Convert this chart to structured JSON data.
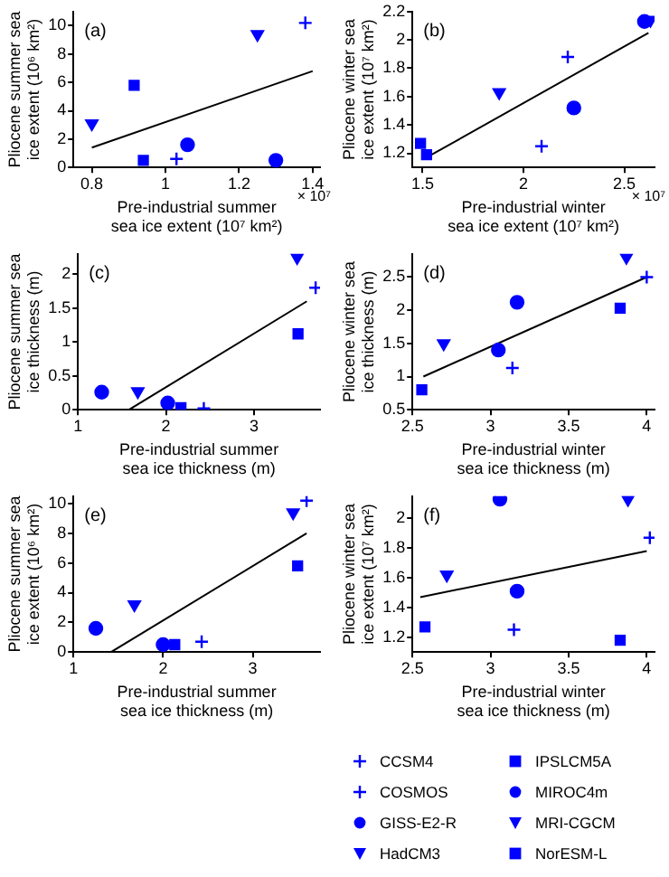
{
  "chart_data": [
    {
      "type": "scatter",
      "xlabel": "Pre-industrial summer\nsea ice extent (10⁷ km²)",
      "ylabel": "Pliocene summer sea\nice extent (10⁶ km²)",
      "annotations": [
        "(a)",
        "× 10⁷"
      ],
      "xlim": [
        0.75,
        1.42
      ],
      "xticks": [
        0.8,
        1,
        1.2,
        1.4
      ],
      "ylim": [
        0,
        11
      ],
      "yticks": [
        0,
        2,
        4,
        6,
        8,
        10
      ],
      "series": [
        {
          "color": "#0000ff",
          "marker": "cross",
          "x": [
            1.38
          ],
          "values": [
            10.2
          ]
        },
        {
          "color": "#0000ff",
          "marker": "cross",
          "x": [
            1.03
          ],
          "values": [
            0.6
          ]
        },
        {
          "color": "#0000ff",
          "marker": "circle",
          "x": [
            1.06
          ],
          "values": [
            1.6
          ]
        },
        {
          "color": "#0000ff",
          "marker": "triangle",
          "x": [
            0.8
          ],
          "values": [
            3.1
          ]
        },
        {
          "color": "#0000ff",
          "marker": "square",
          "x": [
            0.915
          ],
          "values": [
            5.8
          ]
        },
        {
          "color": "#0000ff",
          "marker": "circle",
          "x": [
            1.3
          ],
          "values": [
            0.5
          ]
        },
        {
          "color": "#0000ff",
          "marker": "triangle",
          "x": [
            1.25
          ],
          "values": [
            9.4
          ]
        },
        {
          "color": "#0000ff",
          "marker": "square",
          "x": [
            0.94
          ],
          "values": [
            0.5
          ]
        },
        {
          "type": "line",
          "color": "#000000",
          "marker": "none",
          "x": [
            0.8,
            1.4
          ],
          "values": [
            1.4,
            6.8
          ]
        }
      ]
    },
    {
      "type": "scatter",
      "xlabel": "Pre-industrial winter\nsea ice extent (10⁷ km²)",
      "ylabel": "Pliocene winter sea\nice extent (10⁷ km²)",
      "annotations": [
        "(b)",
        "× 10⁷"
      ],
      "xlim": [
        1.45,
        2.65
      ],
      "xticks": [
        1.5,
        2,
        2.5
      ],
      "ylim": [
        1.1,
        2.2
      ],
      "yticks": [
        1.2,
        1.4,
        1.6,
        1.8,
        2,
        2.2
      ],
      "series": [
        {
          "color": "#0000ff",
          "marker": "cross",
          "x": [
            2.22
          ],
          "values": [
            1.88
          ]
        },
        {
          "color": "#0000ff",
          "marker": "cross",
          "x": [
            2.09
          ],
          "values": [
            1.25
          ]
        },
        {
          "color": "#0000ff",
          "marker": "circle",
          "x": [
            2.25
          ],
          "values": [
            1.52
          ]
        },
        {
          "color": "#0000ff",
          "marker": "triangle",
          "x": [
            1.88
          ],
          "values": [
            1.63
          ]
        },
        {
          "color": "#0000ff",
          "marker": "square",
          "x": [
            1.52
          ],
          "values": [
            1.19
          ]
        },
        {
          "color": "#0000ff",
          "marker": "circle",
          "x": [
            2.6
          ],
          "values": [
            2.13
          ]
        },
        {
          "color": "#0000ff",
          "marker": "triangle",
          "x": [
            2.63
          ],
          "values": [
            2.14
          ]
        },
        {
          "color": "#0000ff",
          "marker": "square",
          "x": [
            1.49
          ],
          "values": [
            1.27
          ]
        },
        {
          "type": "line",
          "color": "#000000",
          "marker": "none",
          "x": [
            1.52,
            2.62
          ],
          "values": [
            1.17,
            2.05
          ]
        }
      ]
    },
    {
      "type": "scatter",
      "xlabel": "Pre-industrial summer\nsea ice thickness (m)",
      "ylabel": "Pliocene summer sea\nice thickness (m)",
      "annotations": [
        "(c)"
      ],
      "xlim": [
        1,
        3.75
      ],
      "xticks": [
        1,
        2,
        3
      ],
      "ylim": [
        0,
        2.3
      ],
      "yticks": [
        0,
        0.5,
        1,
        1.5,
        2
      ],
      "series": [
        {
          "color": "#0000ff",
          "marker": "cross",
          "x": [
            3.7
          ],
          "values": [
            1.8
          ]
        },
        {
          "color": "#0000ff",
          "marker": "cross",
          "x": [
            2.43
          ],
          "values": [
            0.02
          ]
        },
        {
          "color": "#0000ff",
          "marker": "circle",
          "x": [
            1.27
          ],
          "values": [
            0.26
          ]
        },
        {
          "color": "#0000ff",
          "marker": "triangle",
          "x": [
            1.68
          ],
          "values": [
            0.27
          ]
        },
        {
          "color": "#0000ff",
          "marker": "square",
          "x": [
            3.5
          ],
          "values": [
            1.12
          ]
        },
        {
          "color": "#0000ff",
          "marker": "circle",
          "x": [
            2.02
          ],
          "values": [
            0.1
          ]
        },
        {
          "color": "#0000ff",
          "marker": "triangle",
          "x": [
            3.49
          ],
          "values": [
            2.25
          ]
        },
        {
          "color": "#0000ff",
          "marker": "square",
          "x": [
            2.17
          ],
          "values": [
            0.03
          ]
        },
        {
          "type": "line",
          "color": "#000000",
          "marker": "none",
          "x": [
            1.58,
            3.6
          ],
          "values": [
            0,
            1.6
          ]
        }
      ]
    },
    {
      "type": "scatter",
      "xlabel": "Pre-industrial winter\nsea ice thickness (m)",
      "ylabel": "Pliocene winter sea\nice thickness (m)",
      "annotations": [
        "(d)"
      ],
      "xlim": [
        2.5,
        4.05
      ],
      "xticks": [
        2.5,
        3,
        3.5,
        4
      ],
      "ylim": [
        0.5,
        2.85
      ],
      "yticks": [
        0.5,
        1,
        1.5,
        2,
        2.5
      ],
      "series": [
        {
          "color": "#0000ff",
          "marker": "cross",
          "x": [
            4
          ],
          "values": [
            2.5
          ]
        },
        {
          "color": "#0000ff",
          "marker": "cross",
          "x": [
            3.14
          ],
          "values": [
            1.13
          ]
        },
        {
          "color": "#0000ff",
          "marker": "circle",
          "x": [
            3.17
          ],
          "values": [
            2.12
          ]
        },
        {
          "color": "#0000ff",
          "marker": "triangle",
          "x": [
            2.7
          ],
          "values": [
            1.5
          ]
        },
        {
          "color": "#0000ff",
          "marker": "square",
          "x": [
            3.83
          ],
          "values": [
            2.03
          ]
        },
        {
          "color": "#0000ff",
          "marker": "circle",
          "x": [
            3.05
          ],
          "values": [
            1.4
          ]
        },
        {
          "color": "#0000ff",
          "marker": "triangle",
          "x": [
            3.87
          ],
          "values": [
            2.8
          ]
        },
        {
          "color": "#0000ff",
          "marker": "square",
          "x": [
            2.56
          ],
          "values": [
            0.8
          ]
        },
        {
          "type": "line",
          "color": "#000000",
          "marker": "none",
          "x": [
            2.57,
            4
          ],
          "values": [
            1,
            2.5
          ]
        }
      ]
    },
    {
      "type": "scatter",
      "xlabel": "Pre-industrial summer\nsea ice thickness (m)",
      "ylabel": "Pliocene summer sea\nice extent (10⁶ km²)",
      "annotations": [
        "(e)"
      ],
      "xlim": [
        1,
        3.75
      ],
      "xticks": [
        1,
        2,
        3
      ],
      "ylim": [
        0,
        10.5
      ],
      "yticks": [
        0,
        2,
        4,
        6,
        8,
        10
      ],
      "series": [
        {
          "color": "#0000ff",
          "marker": "cross",
          "x": [
            3.6
          ],
          "values": [
            10.2
          ]
        },
        {
          "color": "#0000ff",
          "marker": "cross",
          "x": [
            2.43
          ],
          "values": [
            0.7
          ]
        },
        {
          "color": "#0000ff",
          "marker": "circle",
          "x": [
            1.25
          ],
          "values": [
            1.6
          ]
        },
        {
          "color": "#0000ff",
          "marker": "triangle",
          "x": [
            1.68
          ],
          "values": [
            3.2
          ]
        },
        {
          "color": "#0000ff",
          "marker": "square",
          "x": [
            3.5
          ],
          "values": [
            5.8
          ]
        },
        {
          "color": "#0000ff",
          "marker": "circle",
          "x": [
            2
          ],
          "values": [
            0.5
          ]
        },
        {
          "color": "#0000ff",
          "marker": "triangle",
          "x": [
            3.45
          ],
          "values": [
            9.4
          ]
        },
        {
          "color": "#0000ff",
          "marker": "square",
          "x": [
            2.13
          ],
          "values": [
            0.5
          ]
        },
        {
          "type": "line",
          "color": "#000000",
          "marker": "none",
          "x": [
            1.42,
            3.6
          ],
          "values": [
            0,
            8
          ]
        }
      ]
    },
    {
      "type": "scatter",
      "xlabel": "Pre-industrial winter\nsea ice thickness (m)",
      "ylabel": "Pliocene winter sea\nice extent (10⁷ km²)",
      "annotations": [
        "(f)"
      ],
      "xlim": [
        2.5,
        4.05
      ],
      "xticks": [
        2.5,
        3,
        3.5,
        4
      ],
      "ylim": [
        1.1,
        2.15
      ],
      "yticks": [
        1.2,
        1.4,
        1.6,
        1.8,
        2
      ],
      "legend": "bottom",
      "series": [
        {
          "name": "CCSM4",
          "color": "#0000ff",
          "marker": "cross",
          "x": [
            4.02
          ],
          "values": [
            1.87
          ]
        },
        {
          "name": "COSMOS",
          "color": "#0000ff",
          "marker": "cross",
          "x": [
            3.15
          ],
          "values": [
            1.25
          ]
        },
        {
          "name": "GISS-E2-R",
          "color": "#0000ff",
          "marker": "circle",
          "x": [
            3.17
          ],
          "values": [
            1.51
          ]
        },
        {
          "name": "HadCM3",
          "color": "#0000ff",
          "marker": "triangle",
          "x": [
            2.72
          ],
          "values": [
            1.62
          ]
        },
        {
          "name": "IPSLCM5A",
          "color": "#0000ff",
          "marker": "square",
          "x": [
            3.83
          ],
          "values": [
            1.18
          ]
        },
        {
          "name": "MIROC4m",
          "color": "#0000ff",
          "marker": "circle",
          "x": [
            3.06
          ],
          "values": [
            2.13
          ]
        },
        {
          "name": "MRI-CGCM",
          "color": "#0000ff",
          "marker": "triangle",
          "x": [
            3.88
          ],
          "values": [
            2.13
          ]
        },
        {
          "name": "NorESM-L",
          "color": "#0000ff",
          "marker": "square",
          "x": [
            2.58
          ],
          "values": [
            1.27
          ]
        },
        {
          "type": "line",
          "color": "#000000",
          "marker": "none",
          "x": [
            2.55,
            4
          ],
          "values": [
            1.47,
            1.78
          ]
        }
      ]
    }
  ]
}
